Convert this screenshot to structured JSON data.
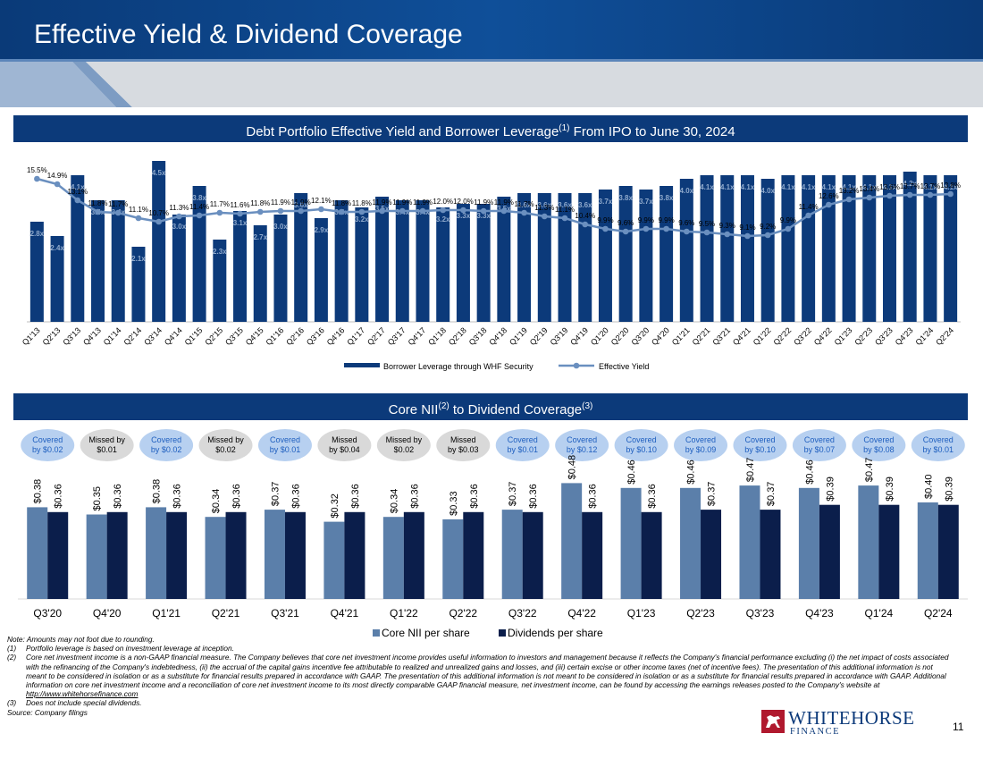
{
  "header": {
    "title": "Effective Yield & Dividend Coverage"
  },
  "colors": {
    "navy": "#0c3a7a",
    "dark_navy": "#0b1e4b",
    "steel_blue": "#5b7faa",
    "yield_line": "#6a8fbf",
    "pill_covered": "#b7d0f0",
    "pill_missed": "#d9d9d9",
    "header_blue": "#0e4e96"
  },
  "chart_data": [
    {
      "type": "bar+line",
      "title_main": "Debt Portfolio Effective Yield and Borrower Leverage",
      "title_sup": "(1)",
      "title_tail": " From IPO to June 30, 2024",
      "categories": [
        "Q1'13",
        "Q2'13",
        "Q3'13",
        "Q4'13",
        "Q1'14",
        "Q2'14",
        "Q3'14",
        "Q4'14",
        "Q1'15",
        "Q2'15",
        "Q3'15",
        "Q4'15",
        "Q1'16",
        "Q2'16",
        "Q3'16",
        "Q4'16",
        "Q1'17",
        "Q2'17",
        "Q3'17",
        "Q4'17",
        "Q1'18",
        "Q2'18",
        "Q3'18",
        "Q4'18",
        "Q1'19",
        "Q2'19",
        "Q3'19",
        "Q4'19",
        "Q1'20",
        "Q2'20",
        "Q3'20",
        "Q4'20",
        "Q1'21",
        "Q2'21",
        "Q3'21",
        "Q4'21",
        "Q1'22",
        "Q2'22",
        "Q3'22",
        "Q4'22",
        "Q1'23",
        "Q2'23",
        "Q3'23",
        "Q4'23",
        "Q1'24",
        "Q2'24"
      ],
      "leverage": [
        2.8,
        2.4,
        4.1,
        3.4,
        3.4,
        2.1,
        4.5,
        3.0,
        3.8,
        2.3,
        3.1,
        2.7,
        3.0,
        3.6,
        2.9,
        3.4,
        3.2,
        3.5,
        3.4,
        3.4,
        3.2,
        3.3,
        3.3,
        3.5,
        3.6,
        3.6,
        3.6,
        3.6,
        3.7,
        3.8,
        3.7,
        3.8,
        4.0,
        4.1,
        4.1,
        4.1,
        4.0,
        4.1,
        4.1,
        4.1,
        4.1,
        4.1,
        4.1,
        4.2,
        4.1,
        4.1
      ],
      "leverage_labels": [
        "2.8x",
        "2.4x",
        "4.1x",
        "3.4x",
        "3.4x",
        "2.1x",
        "4.5x",
        "3.0x",
        "3.8x",
        "2.3x",
        "3.1x",
        "2.7x",
        "3.0x",
        "3.6x",
        "2.9x",
        "3.4x",
        "3.2x",
        "3.5x",
        "3.4x",
        "3.4x",
        "3.2x",
        "3.3x",
        "3.3x",
        "3.5x",
        "3.6x",
        "3.6x",
        "3.6x",
        "3.6x",
        "3.7x",
        "3.8x",
        "3.7x",
        "3.8x",
        "4.0x",
        "4.1x",
        "4.1x",
        "4.1x",
        "4.0x",
        "4.1x",
        "4.1x",
        "4.1x",
        "4.1x",
        "4.1x",
        "4.1x",
        "4.2x",
        "4.1x",
        "4.1x"
      ],
      "yield": [
        15.5,
        14.9,
        13.1,
        11.8,
        11.7,
        11.1,
        10.7,
        11.3,
        11.4,
        11.7,
        11.6,
        11.8,
        11.9,
        11.9,
        12.1,
        11.8,
        11.8,
        11.9,
        11.9,
        11.9,
        12.0,
        12.0,
        11.9,
        11.9,
        11.7,
        11.3,
        11.1,
        10.4,
        9.9,
        9.6,
        9.9,
        9.9,
        9.6,
        9.5,
        9.3,
        9.1,
        9.2,
        9.9,
        11.4,
        12.6,
        13.2,
        13.4,
        13.6,
        13.7,
        13.7,
        13.8
      ],
      "yield_labels": [
        "15.5%",
        "14.9%",
        "13.1%",
        "11.8%",
        "11.7%",
        "11.1%",
        "10.7%",
        "11.3%",
        "11.4%",
        "11.7%",
        "11.6%",
        "11.8%",
        "11.9%",
        "11.9%",
        "12.1%",
        "11.8%",
        "11.8%",
        "11.9%",
        "11.9%",
        "11.9%",
        "12.0%",
        "12.0%",
        "11.9%",
        "11.9%",
        "11.7%",
        "11.3%",
        "11.1%",
        "10.4%",
        "9.9%",
        "9.6%",
        "9.9%",
        "9.9%",
        "9.6%",
        "9.5%",
        "9.3%",
        "9.1%",
        "9.2%",
        "9.9%",
        "11.4%",
        "12.6%",
        "13.2%",
        "13.4%",
        "13.6%",
        "13.7%",
        "13.7%",
        "13.8%"
      ],
      "legend": [
        "Borrower Leverage through WHF Security",
        "Effective Yield"
      ]
    },
    {
      "type": "bar",
      "title_main": "Core NII",
      "title_sup1": "(2)",
      "title_mid": " to Dividend Coverage",
      "title_sup2": "(3)",
      "categories": [
        "Q3'20",
        "Q4'20",
        "Q1'21",
        "Q2'21",
        "Q3'21",
        "Q4'21",
        "Q1'22",
        "Q2'22",
        "Q3'22",
        "Q4'22",
        "Q1'23",
        "Q2'23",
        "Q3'23",
        "Q4'23",
        "Q1'24",
        "Q2'24"
      ],
      "series": [
        {
          "name": "Core NII per share",
          "values": [
            0.38,
            0.35,
            0.38,
            0.34,
            0.37,
            0.32,
            0.34,
            0.33,
            0.37,
            0.48,
            0.46,
            0.46,
            0.47,
            0.46,
            0.47,
            0.4
          ],
          "labels": [
            "$0.38",
            "$0.35",
            "$0.38",
            "$0.34",
            "$0.37",
            "$0.32",
            "$0.34",
            "$0.33",
            "$0.37",
            "$0.48",
            "$0.46",
            "$0.46",
            "$0.47",
            "$0.46",
            "$0.47",
            "$0.40"
          ]
        },
        {
          "name": "Dividends per share",
          "values": [
            0.36,
            0.36,
            0.36,
            0.36,
            0.36,
            0.36,
            0.36,
            0.36,
            0.36,
            0.36,
            0.36,
            0.37,
            0.37,
            0.39,
            0.39,
            0.39
          ],
          "labels": [
            "$0.36",
            "$0.36",
            "$0.36",
            "$0.36",
            "$0.36",
            "$0.36",
            "$0.36",
            "$0.36",
            "$0.36",
            "$0.36",
            "$0.36",
            "$0.37",
            "$0.37",
            "$0.39",
            "$0.39",
            "$0.39"
          ]
        }
      ],
      "coverage_badges": [
        {
          "line1": "Covered",
          "line2": "by $0.02",
          "kind": "covered"
        },
        {
          "line1": "Missed by",
          "line2": "$0.01",
          "kind": "missed"
        },
        {
          "line1": "Covered",
          "line2": "by $0.02",
          "kind": "covered"
        },
        {
          "line1": "Missed by",
          "line2": "$0.02",
          "kind": "missed"
        },
        {
          "line1": "Covered",
          "line2": "by $0.01",
          "kind": "covered"
        },
        {
          "line1": "Missed",
          "line2": "by $0.04",
          "kind": "missed"
        },
        {
          "line1": "Missed by",
          "line2": "$0.02",
          "kind": "missed"
        },
        {
          "line1": "Missed",
          "line2": "by $0.03",
          "kind": "missed"
        },
        {
          "line1": "Covered",
          "line2": "by $0.01",
          "kind": "covered"
        },
        {
          "line1": "Covered",
          "line2": "by $0.12",
          "kind": "covered"
        },
        {
          "line1": "Covered",
          "line2": "by $0.10",
          "kind": "covered"
        },
        {
          "line1": "Covered",
          "line2": "by $0.09",
          "kind": "covered"
        },
        {
          "line1": "Covered",
          "line2": "by $0.10",
          "kind": "covered"
        },
        {
          "line1": "Covered",
          "line2": "by $0.07",
          "kind": "covered"
        },
        {
          "line1": "Covered",
          "line2": "by $0.08",
          "kind": "covered"
        },
        {
          "line1": "Covered",
          "line2": "by $0.01",
          "kind": "covered"
        }
      ],
      "legend": [
        "Core NII per share",
        "Dividends per share"
      ]
    }
  ],
  "notes": {
    "intro": "Note: Amounts may not foot due to rounding.",
    "items": [
      {
        "num": "(1)",
        "text": "Portfolio leverage is based on investment leverage at inception."
      },
      {
        "num": "(2)",
        "text": "Core net investment income is a non-GAAP financial measure. The Company believes that core net investment income provides useful information to investors and management because it reflects the Company's financial performance excluding (i) the net impact of costs associated with the refinancing of the Company's indebtedness, (ii) the accrual of the capital gains incentive fee attributable to realized and unrealized gains and losses, and (iii) certain excise or other income taxes (net of incentive fees). The presentation of this additional information is not meant to be considered in isolation or as a substitute for financial results prepared in accordance with GAAP. The presentation of this additional information is not meant to be considered in isolation or as a substitute for financial results prepared in accordance with GAAP. Additional information on core net investment income and a reconciliation of core net investment income to its most directly comparable GAAP financial measure, net investment income, can be found by accessing the earnings releases posted to the Company's website at",
        "link": "http://www.whitehorsefinance.com"
      },
      {
        "num": "(3)",
        "text": "Does not include special dividends."
      }
    ],
    "source": "Source: Company filings"
  },
  "logo": {
    "word1": "WHITEHORSE",
    "word2": "FINANCE"
  },
  "page_number": "11"
}
